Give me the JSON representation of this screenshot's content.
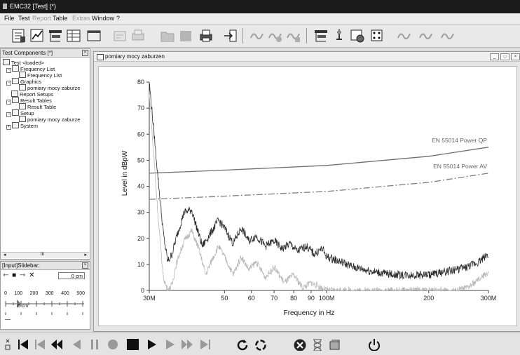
{
  "window": {
    "title": "EMC32 [Test] (*)"
  },
  "menu": {
    "items": [
      {
        "label": "File",
        "enabled": true
      },
      {
        "label": "Test",
        "enabled": true
      },
      {
        "label": "Report",
        "enabled": false
      },
      {
        "label": "Table",
        "enabled": true
      },
      {
        "label": "Extras",
        "enabled": false
      },
      {
        "label": "Window",
        "enabled": true
      },
      {
        "label": "?",
        "enabled": true
      }
    ]
  },
  "toolbar": {
    "icons": [
      "report-edit-icon",
      "graphics-icon",
      "device-setup-icon",
      "table-icon",
      "window-icon",
      "edit-template-icon",
      "print-setup-icon",
      "folder-icon",
      "stop-icon",
      "printer-icon",
      "export-icon",
      "wave-icon",
      "wave-2-icon",
      "wave-3-icon",
      "device-config-icon",
      "probe-icon",
      "scan-settings-icon",
      "dice-icon",
      "wave-4-icon",
      "wave-5-icon",
      "wave-6-icon"
    ]
  },
  "test_components": {
    "title": "Test Components [*]",
    "tree": [
      {
        "label": "Test <loaded>",
        "level": 0
      },
      {
        "label": "Frequency List",
        "level": 1
      },
      {
        "label": "Frequency List",
        "level": 2
      },
      {
        "label": "Graphics",
        "level": 1
      },
      {
        "label": "pomiary mocy zaburze",
        "level": 2
      },
      {
        "label": "Report Setups",
        "level": 1
      },
      {
        "label": "Result Tables",
        "level": 1
      },
      {
        "label": "Result Table",
        "level": 2
      },
      {
        "label": "Setup",
        "level": 1
      },
      {
        "label": "pomiary mocy zaburze",
        "level": 2
      },
      {
        "label": "System",
        "level": 1
      }
    ],
    "scroll_label": "III"
  },
  "slidebar": {
    "title": "[Input]Slidebar:",
    "value": "0 cm",
    "ruler_labels": [
      "0",
      "100",
      "200",
      "300",
      "400",
      "500"
    ],
    "ruler_value": "0 cm"
  },
  "graphics_window": {
    "title": "pomiary mocy zaburzen"
  },
  "chart_data": {
    "type": "line",
    "xlabel": "Frequency in Hz",
    "ylabel": "Level in dBpW",
    "x_scale": "log",
    "xlim": [
      30,
      300
    ],
    "ylim": [
      0,
      80
    ],
    "x_ticks": [
      30,
      50,
      60,
      70,
      80,
      90,
      100,
      200,
      300
    ],
    "x_tick_labels": [
      "30M",
      "50",
      "60",
      "70",
      "80",
      "90",
      "100M",
      "200",
      "300M"
    ],
    "y_ticks": [
      0,
      10,
      20,
      30,
      40,
      50,
      60,
      70,
      80
    ],
    "series": [
      {
        "name": "EN 55014 Power QP",
        "color": "#6e6e6e",
        "style": "solid",
        "x": [
          30,
          50,
          100,
          200,
          300
        ],
        "y": [
          45,
          46.2,
          48,
          51.5,
          55
        ]
      },
      {
        "name": "EN 55014 Power AV",
        "color": "#7e7e7e",
        "style": "dash-dot",
        "x": [
          30,
          50,
          100,
          200,
          300
        ],
        "y": [
          35,
          36.2,
          38,
          41.5,
          45
        ]
      },
      {
        "name": "",
        "color": "#2b2b2b",
        "style": "noisy",
        "x": [
          30,
          31,
          32,
          33,
          34,
          35,
          36,
          38,
          40,
          41,
          43,
          46,
          48,
          50,
          53,
          56,
          59,
          62,
          66,
          70,
          74,
          78,
          82,
          87,
          92,
          97,
          100,
          110,
          120,
          140,
          160,
          180,
          200,
          220,
          240,
          260,
          280,
          300
        ],
        "y": [
          80,
          60,
          40,
          22,
          11,
          14,
          20,
          30,
          31,
          26,
          17,
          23,
          27,
          24,
          18,
          24,
          19,
          21,
          17,
          19,
          16,
          18,
          15,
          17,
          14,
          16,
          13,
          11,
          9,
          7,
          6,
          6,
          6,
          7,
          8,
          9,
          11,
          14
        ]
      },
      {
        "name": "",
        "color": "#b7b7b7",
        "style": "noisy",
        "x": [
          30,
          31,
          32,
          33,
          34,
          35,
          36,
          38,
          40,
          42,
          44,
          46,
          48,
          50,
          53,
          56,
          59,
          62,
          66,
          70,
          75,
          80,
          85,
          90,
          100,
          110,
          120,
          140,
          160,
          200,
          240,
          260,
          280,
          300
        ],
        "y": [
          75,
          50,
          25,
          5,
          0,
          2,
          10,
          19,
          23,
          16,
          6,
          12,
          17,
          13,
          6,
          13,
          8,
          11,
          5,
          9,
          3,
          6,
          1,
          3,
          0,
          0,
          0,
          0,
          0,
          0,
          0,
          1,
          4,
          7
        ]
      }
    ]
  },
  "bottom_toolbar": {
    "icons": [
      "first-icon",
      "prev-page-icon",
      "fast-back-icon",
      "step-back-icon",
      "pause-icon",
      "record-icon",
      "stop-icon",
      "play-icon",
      "step-forward-icon",
      "fast-forward-icon",
      "last-icon",
      "refresh-icon",
      "cycle-icon",
      "cancel-icon",
      "hourglass-icon",
      "settings-icon",
      "power-icon"
    ]
  }
}
